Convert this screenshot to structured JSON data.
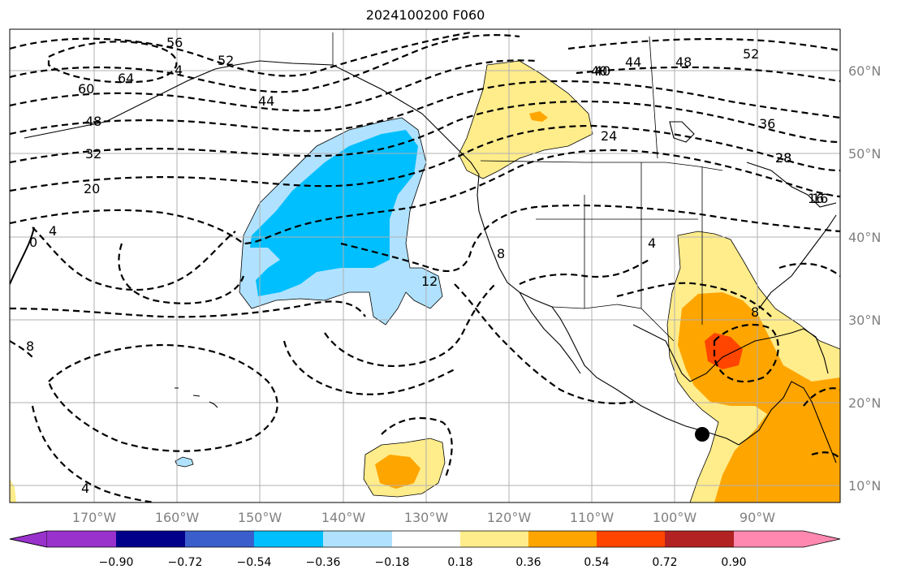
{
  "title": "2024100200 F060",
  "axes": {
    "lon_labels": [
      "170°W",
      "160°W",
      "150°W",
      "140°W",
      "130°W",
      "120°W",
      "110°W",
      "100°W",
      "90°W"
    ],
    "lat_labels": [
      "60°N",
      "50°N",
      "40°N",
      "30°N",
      "20°N",
      "10°N"
    ]
  },
  "colorbar": {
    "ticks": [
      "−0.90",
      "−0.72",
      "−0.54",
      "−0.36",
      "−0.18",
      "0.18",
      "0.36",
      "0.54",
      "0.72",
      "0.90"
    ],
    "colors": [
      "#9932cc",
      "#00008b",
      "#3a5fcd",
      "#00bfff",
      "#b0e2ff",
      "#ffffff",
      "#ffec8b",
      "#ffa500",
      "#ff4500",
      "#b22222",
      "#ff88b0"
    ]
  },
  "contour_labels": [
    "56",
    "52",
    "64",
    "60",
    "48",
    "44",
    "40",
    "32",
    "28",
    "24",
    "20",
    "0",
    "4",
    "8",
    "4",
    "12",
    "16",
    "52",
    "48",
    "44",
    "40",
    "36",
    "28",
    "16",
    "8",
    "4",
    "8",
    "4"
  ],
  "marker": "storm-center"
}
